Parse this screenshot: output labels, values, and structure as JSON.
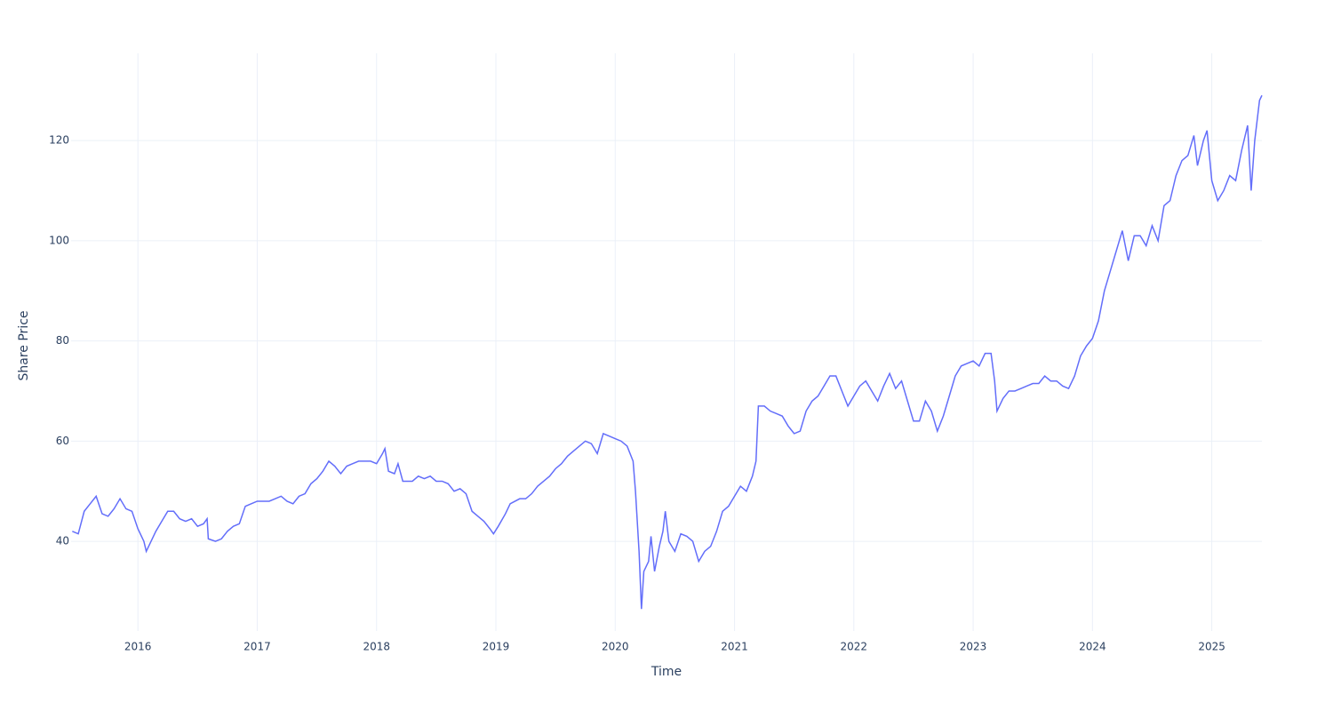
{
  "chart_data": {
    "type": "line",
    "x_label": "Time",
    "y_label": "Share Price",
    "xlim": [
      2015.44,
      2025.42
    ],
    "ylim": [
      22.1,
      137.4
    ],
    "xticks": [
      2016,
      2017,
      2018,
      2019,
      2020,
      2021,
      2022,
      2023,
      2024,
      2025
    ],
    "yticks": [
      40,
      60,
      80,
      100,
      120
    ],
    "grid": true,
    "color": "#636efa",
    "x": [
      2015.45,
      2015.5,
      2015.55,
      2015.6,
      2015.65,
      2015.7,
      2015.75,
      2015.8,
      2015.85,
      2015.9,
      2015.95,
      2016.0,
      2016.05,
      2016.07,
      2016.1,
      2016.15,
      2016.2,
      2016.25,
      2016.3,
      2016.35,
      2016.4,
      2016.45,
      2016.5,
      2016.55,
      2016.58,
      2016.59,
      2016.65,
      2016.7,
      2016.75,
      2016.8,
      2016.85,
      2016.9,
      2016.95,
      2017.0,
      2017.05,
      2017.1,
      2017.15,
      2017.2,
      2017.25,
      2017.3,
      2017.35,
      2017.4,
      2017.45,
      2017.5,
      2017.55,
      2017.6,
      2017.65,
      2017.7,
      2017.75,
      2017.8,
      2017.85,
      2017.9,
      2017.95,
      2018.0,
      2018.05,
      2018.07,
      2018.1,
      2018.15,
      2018.18,
      2018.22,
      2018.3,
      2018.35,
      2018.4,
      2018.45,
      2018.5,
      2018.55,
      2018.6,
      2018.65,
      2018.7,
      2018.75,
      2018.8,
      2018.85,
      2018.9,
      2018.95,
      2018.98,
      2019.02,
      2019.08,
      2019.12,
      2019.2,
      2019.25,
      2019.3,
      2019.35,
      2019.4,
      2019.45,
      2019.5,
      2019.55,
      2019.6,
      2019.65,
      2019.7,
      2019.75,
      2019.8,
      2019.85,
      2019.9,
      2019.95,
      2020.0,
      2020.05,
      2020.1,
      2020.15,
      2020.17,
      2020.2,
      2020.22,
      2020.24,
      2020.28,
      2020.3,
      2020.33,
      2020.37,
      2020.4,
      2020.42,
      2020.45,
      2020.5,
      2020.55,
      2020.6,
      2020.65,
      2020.7,
      2020.75,
      2020.8,
      2020.85,
      2020.9,
      2020.95,
      2021.0,
      2021.05,
      2021.1,
      2021.15,
      2021.18,
      2021.2,
      2021.25,
      2021.3,
      2021.35,
      2021.4,
      2021.45,
      2021.5,
      2021.55,
      2021.6,
      2021.65,
      2021.7,
      2021.75,
      2021.8,
      2021.85,
      2021.9,
      2021.95,
      2022.0,
      2022.05,
      2022.1,
      2022.15,
      2022.2,
      2022.25,
      2022.3,
      2022.35,
      2022.4,
      2022.45,
      2022.5,
      2022.55,
      2022.6,
      2022.65,
      2022.7,
      2022.75,
      2022.8,
      2022.85,
      2022.9,
      2022.95,
      2023.0,
      2023.05,
      2023.1,
      2023.15,
      2023.18,
      2023.2,
      2023.25,
      2023.3,
      2023.35,
      2023.4,
      2023.45,
      2023.5,
      2023.55,
      2023.6,
      2023.65,
      2023.7,
      2023.75,
      2023.8,
      2023.85,
      2023.9,
      2023.95,
      2024.0,
      2024.05,
      2024.1,
      2024.15,
      2024.2,
      2024.25,
      2024.3,
      2024.35,
      2024.4,
      2024.45,
      2024.5,
      2024.55,
      2024.6,
      2024.65,
      2024.7,
      2024.75,
      2024.8,
      2024.85,
      2024.88,
      2024.93,
      2024.96,
      2025.0,
      2025.05,
      2025.1,
      2025.15,
      2025.2,
      2025.25,
      2025.3,
      2025.33,
      2025.36,
      2025.4,
      2025.42
    ],
    "values": [
      42,
      41.5,
      46,
      47.5,
      49,
      45.5,
      45,
      46.5,
      48.5,
      46.5,
      46,
      42.5,
      40,
      38,
      39.5,
      42,
      44,
      46,
      46,
      44.5,
      44,
      44.5,
      43,
      43.5,
      44.5,
      40.5,
      40,
      40.5,
      42,
      43,
      43.5,
      47,
      47.5,
      48,
      48,
      48,
      48.5,
      49,
      48,
      47.5,
      49,
      49.5,
      51.5,
      52.5,
      54,
      56,
      55,
      53.5,
      55,
      55.5,
      56,
      56,
      56,
      55.5,
      57.5,
      58.5,
      54,
      53.5,
      55.5,
      52,
      52,
      53,
      52.5,
      53,
      52,
      52,
      51.5,
      50,
      50.5,
      49.5,
      46,
      45,
      44,
      42.5,
      41.5,
      43,
      45.5,
      47.5,
      48.5,
      48.5,
      49.5,
      51,
      52,
      53,
      54.5,
      55.5,
      57,
      58,
      59,
      60,
      59.5,
      57.5,
      61.5,
      61,
      60.5,
      60,
      59,
      56,
      50,
      38,
      26.5,
      34,
      36,
      41,
      34,
      39,
      42,
      46,
      40,
      38,
      41.5,
      41,
      40,
      36,
      38,
      39,
      42,
      46,
      47,
      49,
      51,
      50,
      53,
      56,
      67,
      67,
      66,
      65.5,
      65,
      63,
      61.5,
      62,
      66,
      68,
      69,
      71,
      73,
      73,
      70,
      67,
      69,
      71,
      72,
      70,
      68,
      71,
      73.5,
      70.5,
      72,
      68,
      64,
      64,
      68,
      66,
      62,
      65,
      69,
      73,
      75,
      75.5,
      76,
      75,
      77.5,
      77.5,
      72,
      66,
      68.5,
      70,
      70,
      70.5,
      71,
      71.5,
      71.5,
      73,
      72,
      72,
      71,
      70.5,
      73,
      77,
      79,
      80.5,
      84,
      90,
      94,
      98,
      102,
      96,
      101,
      101,
      99,
      103,
      100,
      107,
      108,
      113,
      116,
      117,
      121,
      115,
      120,
      122,
      112,
      108,
      110,
      113,
      112,
      118,
      123,
      110,
      120,
      128,
      129
    ]
  }
}
